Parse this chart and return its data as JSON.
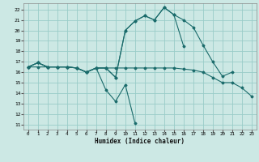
{
  "xlabel": "Humidex (Indice chaleur)",
  "bg_color": "#cce8e4",
  "grid_color": "#99ccc8",
  "line_color": "#1a6b6b",
  "x_ticks": [
    0,
    1,
    2,
    3,
    4,
    5,
    6,
    7,
    8,
    9,
    10,
    11,
    12,
    13,
    14,
    15,
    16,
    17,
    18,
    19,
    20,
    21,
    22,
    23
  ],
  "y_ticks": [
    11,
    12,
    13,
    14,
    15,
    16,
    17,
    18,
    19,
    20,
    21,
    22
  ],
  "xlim": [
    -0.5,
    23.5
  ],
  "ylim": [
    10.5,
    22.6
  ],
  "series": [
    {
      "x": [
        0,
        1,
        2,
        3,
        4,
        5,
        6,
        7,
        8,
        9,
        10,
        11
      ],
      "y": [
        16.5,
        16.9,
        16.5,
        16.5,
        16.5,
        16.4,
        16.0,
        16.4,
        14.3,
        13.2,
        14.8,
        11.1
      ]
    },
    {
      "x": [
        0,
        1,
        2,
        3,
        4,
        5,
        6,
        7,
        8,
        9,
        10,
        11,
        12,
        13,
        14,
        15,
        16
      ],
      "y": [
        16.5,
        16.9,
        16.5,
        16.5,
        16.5,
        16.4,
        16.0,
        16.4,
        16.4,
        15.5,
        20.0,
        20.9,
        21.4,
        21.0,
        22.2,
        21.5,
        18.5
      ]
    },
    {
      "x": [
        0,
        1,
        2,
        3,
        4,
        5,
        6,
        7,
        8,
        9,
        10,
        11,
        12,
        13,
        14,
        15,
        16,
        17,
        18,
        19,
        20,
        21
      ],
      "y": [
        16.5,
        16.9,
        16.5,
        16.5,
        16.5,
        16.4,
        16.0,
        16.4,
        16.4,
        15.5,
        20.0,
        20.9,
        21.4,
        21.0,
        22.2,
        21.5,
        21.0,
        20.3,
        18.6,
        17.0,
        15.6,
        16.0
      ]
    },
    {
      "x": [
        0,
        1,
        2,
        3,
        4,
        5,
        6,
        7,
        8,
        9,
        10,
        11,
        12,
        13,
        14,
        15,
        16,
        17,
        18,
        19,
        20,
        21,
        22,
        23
      ],
      "y": [
        16.5,
        16.5,
        16.5,
        16.5,
        16.5,
        16.4,
        16.0,
        16.4,
        16.4,
        16.4,
        16.4,
        16.4,
        16.4,
        16.4,
        16.4,
        16.4,
        16.3,
        16.2,
        16.0,
        15.5,
        15.0,
        15.0,
        14.5,
        13.7
      ]
    }
  ]
}
